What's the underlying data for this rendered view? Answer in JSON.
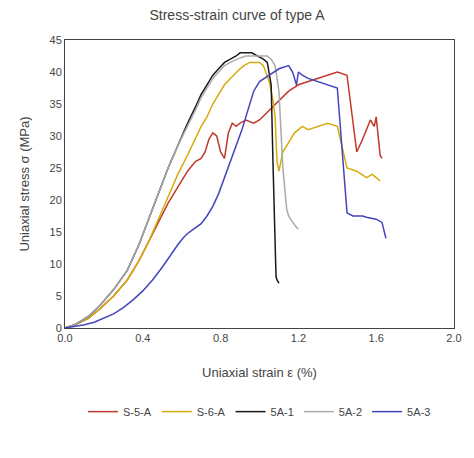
{
  "chart_data": {
    "type": "line",
    "title": "Stress-strain curve of type A",
    "x_label": "Uniaxial strain ε (%)",
    "y_label": "Uniaxial stress σ (MPa)",
    "xlim": [
      0.0,
      2.0
    ],
    "ylim": [
      0,
      45
    ],
    "xticks": [
      {
        "value": 0.0,
        "label": "0.0"
      },
      0.4,
      0.8,
      1.2,
      1.6,
      {
        "value": 2.0,
        "label": "2.0"
      }
    ],
    "yticks": [
      0,
      5,
      10,
      15,
      20,
      25,
      30,
      35,
      40,
      45
    ],
    "grid": false,
    "legend": "bottom",
    "series": [
      {
        "name": "S-5-A",
        "color": "#c0392b",
        "x": [
          0.0,
          0.05,
          0.12,
          0.18,
          0.25,
          0.32,
          0.38,
          0.43,
          0.48,
          0.53,
          0.58,
          0.63,
          0.67,
          0.7,
          0.72,
          0.74,
          0.76,
          0.78,
          0.8,
          0.82,
          0.84,
          0.86,
          0.88,
          0.9,
          0.93,
          0.97,
          1.0,
          1.05,
          1.1,
          1.15,
          1.2,
          1.25,
          1.3,
          1.35,
          1.4,
          1.45,
          1.5,
          1.53,
          1.55,
          1.57,
          1.59,
          1.6,
          1.62,
          1.63
        ],
        "values": [
          0.0,
          0.5,
          1.5,
          3.0,
          5.0,
          7.5,
          10.5,
          13.5,
          16.5,
          19.5,
          22.0,
          24.5,
          26.0,
          26.5,
          27.5,
          29.5,
          30.5,
          30.0,
          27.5,
          26.5,
          30.5,
          32.0,
          31.5,
          32.0,
          32.5,
          32.0,
          32.5,
          34.0,
          35.5,
          37.0,
          38.0,
          38.5,
          39.0,
          39.5,
          40.0,
          39.5,
          27.5,
          29.5,
          31.0,
          32.5,
          31.5,
          33.0,
          27.0,
          26.5
        ]
      },
      {
        "name": "S-6-A",
        "color": "#d4ac0d",
        "x": [
          0.0,
          0.05,
          0.12,
          0.18,
          0.25,
          0.32,
          0.38,
          0.43,
          0.48,
          0.53,
          0.58,
          0.63,
          0.67,
          0.7,
          0.73,
          0.76,
          0.79,
          0.82,
          0.85,
          0.88,
          0.9,
          0.92,
          0.95,
          0.98,
          1.0,
          1.02,
          1.05,
          1.07,
          1.08,
          1.09,
          1.1,
          1.12,
          1.15,
          1.18,
          1.2,
          1.22,
          1.25,
          1.3,
          1.35,
          1.4,
          1.45,
          1.5,
          1.55,
          1.58,
          1.6,
          1.62
        ],
        "values": [
          0.0,
          0.5,
          1.5,
          3.0,
          5.0,
          7.5,
          10.5,
          13.5,
          17.0,
          20.5,
          24.0,
          27.0,
          29.5,
          31.5,
          33.0,
          35.0,
          36.5,
          38.0,
          39.0,
          40.0,
          40.5,
          41.0,
          41.5,
          41.5,
          41.5,
          41.0,
          38.5,
          35.5,
          33.0,
          26.0,
          24.5,
          27.5,
          29.0,
          30.5,
          31.0,
          31.5,
          31.0,
          31.5,
          32.0,
          31.5,
          25.0,
          24.5,
          23.5,
          24.0,
          23.5,
          23.0
        ]
      },
      {
        "name": "5A-1",
        "color": "#1a1a1a",
        "x": [
          0.0,
          0.05,
          0.12,
          0.18,
          0.25,
          0.32,
          0.38,
          0.43,
          0.48,
          0.53,
          0.58,
          0.63,
          0.67,
          0.7,
          0.73,
          0.76,
          0.79,
          0.82,
          0.85,
          0.88,
          0.9,
          0.93,
          0.96,
          0.99,
          1.02,
          1.04,
          1.06,
          1.07,
          1.08,
          1.085,
          1.09,
          1.095,
          1.1
        ],
        "values": [
          0.0,
          0.5,
          1.8,
          3.5,
          6.0,
          9.0,
          13.0,
          17.0,
          21.0,
          25.0,
          28.5,
          32.0,
          34.5,
          36.5,
          38.0,
          39.5,
          40.5,
          41.5,
          42.0,
          42.5,
          43.0,
          43.0,
          43.0,
          42.5,
          42.0,
          41.5,
          38.0,
          25.0,
          12.0,
          8.0,
          7.5,
          7.2,
          7.0
        ]
      },
      {
        "name": "5A-2",
        "color": "#aaaaaa",
        "x": [
          0.0,
          0.05,
          0.12,
          0.18,
          0.25,
          0.32,
          0.38,
          0.43,
          0.48,
          0.53,
          0.58,
          0.63,
          0.67,
          0.7,
          0.73,
          0.76,
          0.79,
          0.82,
          0.85,
          0.88,
          0.9,
          0.93,
          0.96,
          0.99,
          1.02,
          1.04,
          1.06,
          1.08,
          1.1,
          1.12,
          1.14,
          1.15,
          1.16,
          1.17,
          1.18,
          1.19,
          1.2
        ],
        "values": [
          0.0,
          0.5,
          1.8,
          3.5,
          6.0,
          9.0,
          13.0,
          17.0,
          21.0,
          25.0,
          28.5,
          31.5,
          34.0,
          36.0,
          37.5,
          39.0,
          40.0,
          41.0,
          41.5,
          42.0,
          42.2,
          42.5,
          42.5,
          42.5,
          42.5,
          42.5,
          42.0,
          41.0,
          37.0,
          25.0,
          18.5,
          17.5,
          17.0,
          16.5,
          16.0,
          15.7,
          15.5
        ]
      },
      {
        "name": "5A-3",
        "color": "#4444bb",
        "x": [
          0.0,
          0.05,
          0.1,
          0.15,
          0.2,
          0.25,
          0.3,
          0.35,
          0.4,
          0.45,
          0.5,
          0.55,
          0.58,
          0.6,
          0.62,
          0.65,
          0.68,
          0.7,
          0.73,
          0.76,
          0.79,
          0.82,
          0.85,
          0.88,
          0.91,
          0.94,
          0.97,
          1.0,
          1.05,
          1.1,
          1.15,
          1.17,
          1.18,
          1.19,
          1.2,
          1.22,
          1.25,
          1.3,
          1.35,
          1.4,
          1.45,
          1.48,
          1.5,
          1.52,
          1.53,
          1.55,
          1.6,
          1.63,
          1.65
        ],
        "values": [
          0.0,
          0.2,
          0.5,
          0.9,
          1.5,
          2.2,
          3.2,
          4.4,
          5.8,
          7.5,
          9.5,
          11.8,
          13.0,
          13.8,
          14.5,
          15.2,
          15.8,
          16.3,
          17.5,
          19.0,
          21.0,
          23.5,
          26.0,
          28.5,
          31.0,
          34.0,
          37.0,
          38.5,
          39.5,
          40.5,
          41.0,
          40.0,
          39.0,
          38.0,
          40.0,
          39.5,
          39.0,
          38.5,
          38.0,
          37.5,
          18.0,
          17.5,
          17.5,
          17.5,
          17.5,
          17.3,
          17.0,
          16.5,
          14.0
        ]
      }
    ]
  }
}
